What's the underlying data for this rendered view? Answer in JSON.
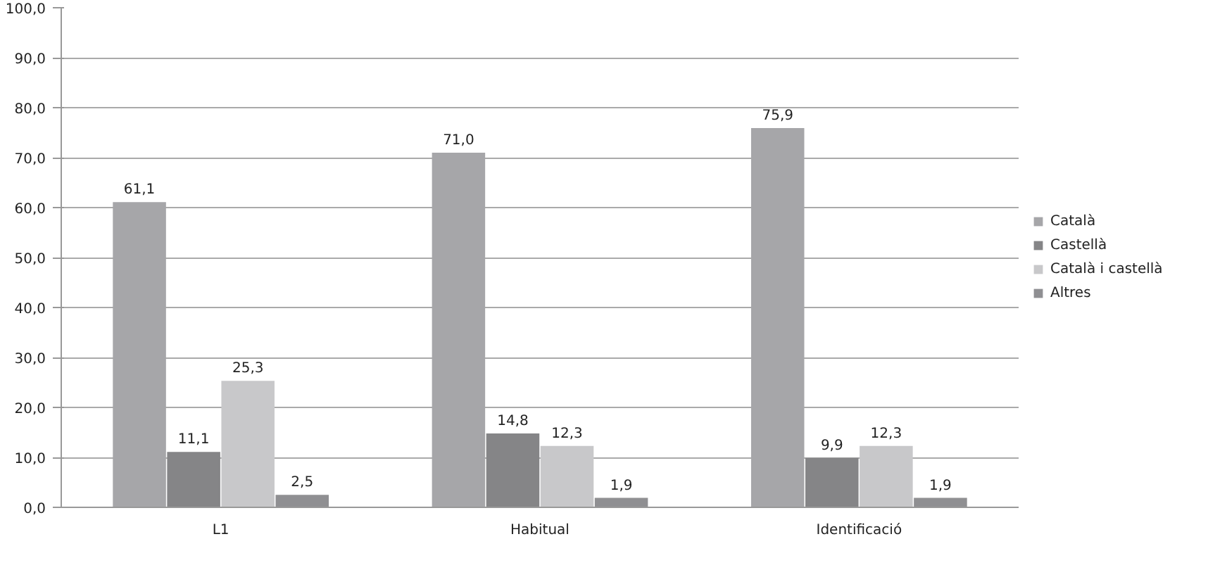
{
  "chart_data": {
    "type": "bar",
    "categories": [
      "L1",
      "Habitual",
      "Identificació"
    ],
    "series": [
      {
        "name": "Català",
        "color": "#a6a6a9",
        "values": [
          61.1,
          71.0,
          75.9
        ],
        "value_labels": [
          "61,1",
          "71,0",
          "75,9"
        ]
      },
      {
        "name": "Castellà",
        "color": "#858587",
        "values": [
          11.1,
          14.8,
          9.9
        ],
        "value_labels": [
          "11,1",
          "14,8",
          "9,9"
        ]
      },
      {
        "name": "Català i castellà",
        "color": "#c8c8ca",
        "values": [
          25.3,
          12.3,
          12.3
        ],
        "value_labels": [
          "25,3",
          "12,3",
          "12,3"
        ]
      },
      {
        "name": "Altres",
        "color": "#8f8f92",
        "values": [
          2.5,
          1.9,
          1.9
        ],
        "value_labels": [
          "2,5",
          "1,9",
          "1,9"
        ]
      }
    ],
    "ylim": [
      0,
      100
    ],
    "yticks": [
      {
        "value": 0,
        "label": "0,0"
      },
      {
        "value": 10,
        "label": "10,0"
      },
      {
        "value": 20,
        "label": "20,0"
      },
      {
        "value": 30,
        "label": "30,0"
      },
      {
        "value": 40,
        "label": "40,0"
      },
      {
        "value": 50,
        "label": "50,0"
      },
      {
        "value": 60,
        "label": "60,0"
      },
      {
        "value": 70,
        "label": "70,0"
      },
      {
        "value": 80,
        "label": "80,0"
      },
      {
        "value": 90,
        "label": "90,0"
      },
      {
        "value": 100,
        "label": "100,0"
      }
    ],
    "grid": "y",
    "legend": "right"
  }
}
